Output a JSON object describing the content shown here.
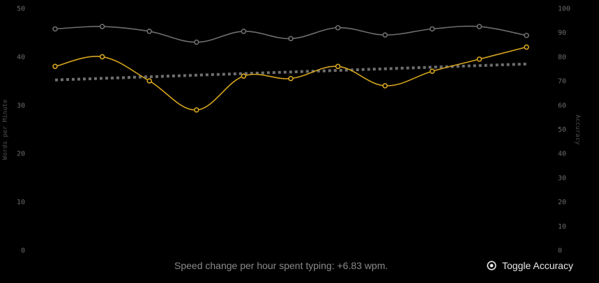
{
  "chart_data": {
    "type": "line",
    "x": [
      1,
      2,
      3,
      4,
      5,
      6,
      7,
      8,
      9,
      10,
      11
    ],
    "series": [
      {
        "key": "wpm",
        "values": [
          38,
          40,
          35,
          29,
          36,
          35.5,
          38,
          34,
          37,
          39.5,
          42
        ],
        "axis": "left",
        "color": "#d6a51e"
      },
      {
        "key": "accuracy",
        "values": [
          91.5,
          92.5,
          90.5,
          86,
          90.5,
          87.5,
          92,
          89,
          91.5,
          92.5,
          88.8
        ],
        "axis": "right",
        "color": "#6e6e6e"
      },
      {
        "key": "trend",
        "values": [
          35.2,
          38.5
        ],
        "x": [
          1,
          11
        ],
        "axis": "left",
        "style": "dotted",
        "color": "#6f6f6f"
      }
    ],
    "ylabel": "Words per Minute",
    "ylabel_right": "Accuracy",
    "ylim": [
      0,
      50
    ],
    "ylim_right": [
      0,
      100
    ],
    "yticks": [
      "0",
      "10",
      "20",
      "30",
      "40",
      "50"
    ],
    "yticks_right": [
      "0",
      "10",
      "20",
      "30",
      "40",
      "50",
      "60",
      "70",
      "80",
      "90",
      "100"
    ],
    "grid": false
  },
  "footer": {
    "speed_change": "Speed change per hour spent typing: +6.83 wpm.",
    "toggle_label": "Toggle Accuracy"
  },
  "icons": {
    "toggle": "eye-circle-icon"
  }
}
